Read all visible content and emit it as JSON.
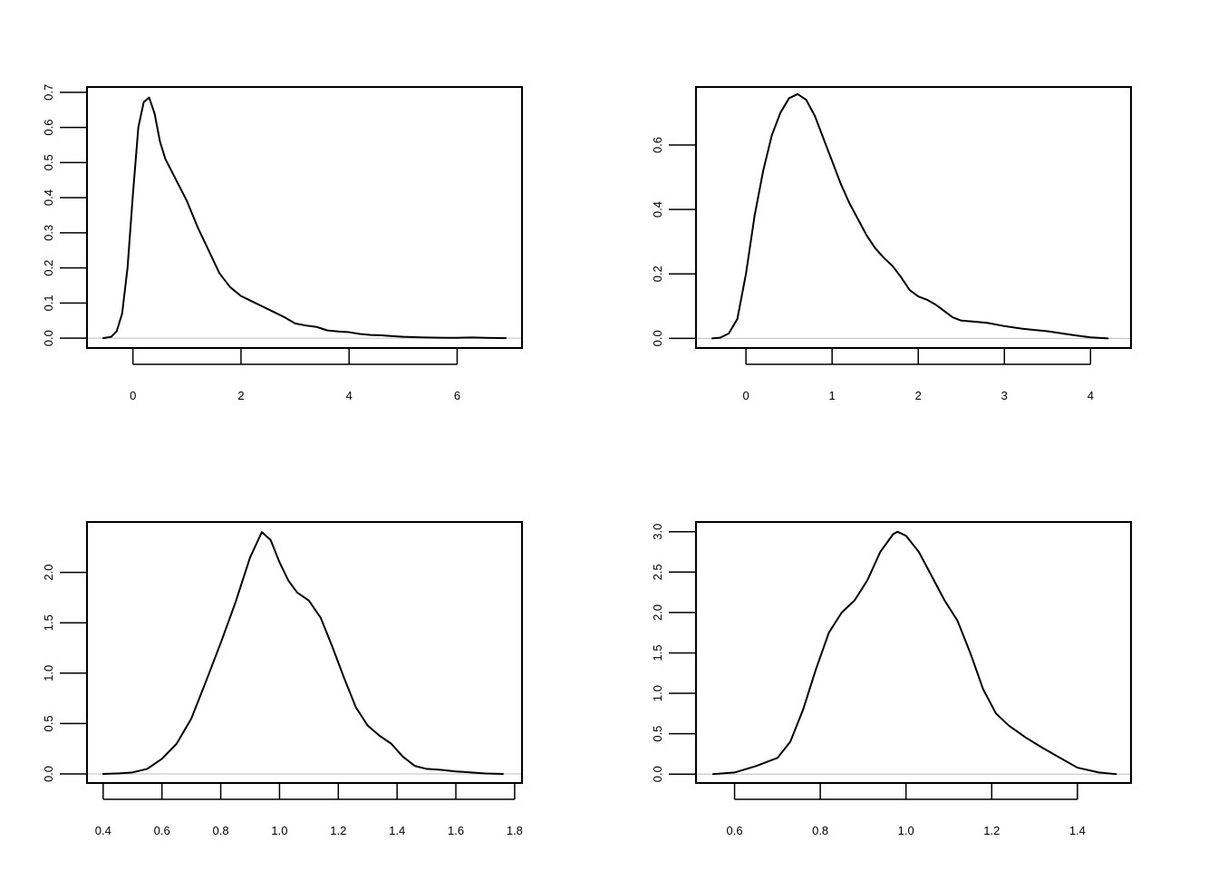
{
  "chart_data": [
    {
      "type": "line",
      "title": "",
      "xlabel": "",
      "ylabel": "",
      "xlim": [
        -0.85,
        7.2
      ],
      "ylim": [
        -0.028,
        0.715
      ],
      "x_ticks": [
        0,
        2,
        4,
        6
      ],
      "x_tick_labels": [
        "0",
        "2",
        "4",
        "6"
      ],
      "y_ticks": [
        0.0,
        0.1,
        0.2,
        0.3,
        0.4,
        0.5,
        0.6,
        0.7
      ],
      "y_tick_labels": [
        "0.0",
        "0.1",
        "0.2",
        "0.3",
        "0.4",
        "0.5",
        "0.6",
        "0.7"
      ],
      "baseline": 0,
      "grid": false,
      "series": [
        {
          "x": [
            -0.55,
            -0.4,
            -0.3,
            -0.2,
            -0.1,
            0.0,
            0.1,
            0.2,
            0.3,
            0.4,
            0.5,
            0.6,
            0.8,
            1.0,
            1.2,
            1.4,
            1.6,
            1.8,
            2.0,
            2.2,
            2.4,
            2.6,
            2.8,
            3.0,
            3.2,
            3.4,
            3.6,
            3.8,
            4.0,
            4.2,
            4.4,
            4.6,
            4.8,
            5.0,
            5.4,
            5.8,
            6.0,
            6.3,
            6.5,
            6.9
          ],
          "y": [
            0.0,
            0.004,
            0.02,
            0.07,
            0.2,
            0.41,
            0.6,
            0.672,
            0.685,
            0.64,
            0.56,
            0.51,
            0.45,
            0.39,
            0.315,
            0.25,
            0.185,
            0.145,
            0.12,
            0.105,
            0.09,
            0.075,
            0.06,
            0.042,
            0.036,
            0.032,
            0.022,
            0.019,
            0.017,
            0.012,
            0.009,
            0.008,
            0.006,
            0.004,
            0.002,
            0.001,
            0.001,
            0.002,
            0.001,
            0.0
          ]
        }
      ]
    },
    {
      "type": "line",
      "title": "",
      "xlabel": "",
      "ylabel": "",
      "xlim": [
        -0.58,
        4.47
      ],
      "ylim": [
        -0.03,
        0.78
      ],
      "x_ticks": [
        0,
        1,
        2,
        3,
        4
      ],
      "x_tick_labels": [
        "0",
        "1",
        "2",
        "3",
        "4"
      ],
      "y_ticks": [
        0.0,
        0.2,
        0.4,
        0.6
      ],
      "y_tick_labels": [
        "0.0",
        "0.2",
        "0.4",
        "0.6"
      ],
      "baseline": 0,
      "grid": false,
      "series": [
        {
          "x": [
            -0.39,
            -0.3,
            -0.2,
            -0.1,
            0.0,
            0.1,
            0.2,
            0.3,
            0.4,
            0.5,
            0.6,
            0.7,
            0.8,
            0.9,
            1.0,
            1.1,
            1.2,
            1.3,
            1.4,
            1.5,
            1.6,
            1.7,
            1.8,
            1.9,
            2.0,
            2.1,
            2.2,
            2.3,
            2.4,
            2.5,
            2.6,
            2.8,
            3.0,
            3.2,
            3.5,
            3.8,
            4.0,
            4.2
          ],
          "y": [
            0.0,
            0.002,
            0.015,
            0.06,
            0.2,
            0.38,
            0.52,
            0.63,
            0.7,
            0.745,
            0.758,
            0.74,
            0.69,
            0.62,
            0.55,
            0.48,
            0.42,
            0.37,
            0.32,
            0.28,
            0.25,
            0.225,
            0.19,
            0.15,
            0.13,
            0.12,
            0.105,
            0.085,
            0.065,
            0.055,
            0.053,
            0.048,
            0.038,
            0.03,
            0.022,
            0.01,
            0.003,
            0.0
          ]
        }
      ]
    },
    {
      "type": "line",
      "title": "",
      "xlabel": "",
      "ylabel": "",
      "xlim": [
        0.345,
        1.825
      ],
      "ylim": [
        -0.09,
        2.5
      ],
      "x_ticks": [
        0.4,
        0.6,
        0.8,
        1.0,
        1.2,
        1.4,
        1.6,
        1.8
      ],
      "x_tick_labels": [
        "0.4",
        "0.6",
        "0.8",
        "1.0",
        "1.2",
        "1.4",
        "1.6",
        "1.8"
      ],
      "y_ticks": [
        0.0,
        0.5,
        1.0,
        1.5,
        2.0
      ],
      "y_tick_labels": [
        "0.0",
        "0.5",
        "1.0",
        "1.5",
        "2.0"
      ],
      "baseline": 0,
      "grid": false,
      "series": [
        {
          "x": [
            0.4,
            0.45,
            0.5,
            0.55,
            0.6,
            0.65,
            0.7,
            0.75,
            0.8,
            0.85,
            0.9,
            0.94,
            0.97,
            1.0,
            1.03,
            1.06,
            1.1,
            1.14,
            1.18,
            1.22,
            1.26,
            1.3,
            1.34,
            1.38,
            1.42,
            1.46,
            1.5,
            1.55,
            1.6,
            1.7,
            1.76
          ],
          "y": [
            0.0,
            0.005,
            0.015,
            0.05,
            0.15,
            0.3,
            0.55,
            0.92,
            1.3,
            1.7,
            2.15,
            2.4,
            2.32,
            2.1,
            1.92,
            1.8,
            1.72,
            1.55,
            1.26,
            0.95,
            0.66,
            0.48,
            0.38,
            0.3,
            0.17,
            0.08,
            0.05,
            0.04,
            0.025,
            0.005,
            0.0
          ]
        }
      ]
    },
    {
      "type": "line",
      "title": "",
      "xlabel": "",
      "ylabel": "",
      "xlim": [
        0.51,
        1.525
      ],
      "ylim": [
        -0.11,
        3.12
      ],
      "x_ticks": [
        0.6,
        0.8,
        1.0,
        1.2,
        1.4
      ],
      "x_tick_labels": [
        "0.6",
        "0.8",
        "1.0",
        "1.2",
        "1.4"
      ],
      "y_ticks": [
        0.0,
        0.5,
        1.0,
        1.5,
        2.0,
        2.5,
        3.0
      ],
      "y_tick_labels": [
        "0.0",
        "0.5",
        "1.0",
        "1.5",
        "2.0",
        "2.5",
        "3.0"
      ],
      "baseline": 0,
      "grid": false,
      "series": [
        {
          "x": [
            0.55,
            0.6,
            0.65,
            0.7,
            0.73,
            0.76,
            0.79,
            0.82,
            0.85,
            0.88,
            0.91,
            0.94,
            0.97,
            0.98,
            1.0,
            1.03,
            1.06,
            1.09,
            1.12,
            1.15,
            1.18,
            1.21,
            1.24,
            1.28,
            1.32,
            1.36,
            1.4,
            1.45,
            1.49
          ],
          "y": [
            0.0,
            0.02,
            0.1,
            0.2,
            0.4,
            0.8,
            1.3,
            1.75,
            2.0,
            2.15,
            2.4,
            2.75,
            2.97,
            3.0,
            2.95,
            2.75,
            2.45,
            2.15,
            1.9,
            1.5,
            1.05,
            0.75,
            0.6,
            0.45,
            0.32,
            0.2,
            0.08,
            0.02,
            0.0
          ]
        }
      ]
    }
  ]
}
